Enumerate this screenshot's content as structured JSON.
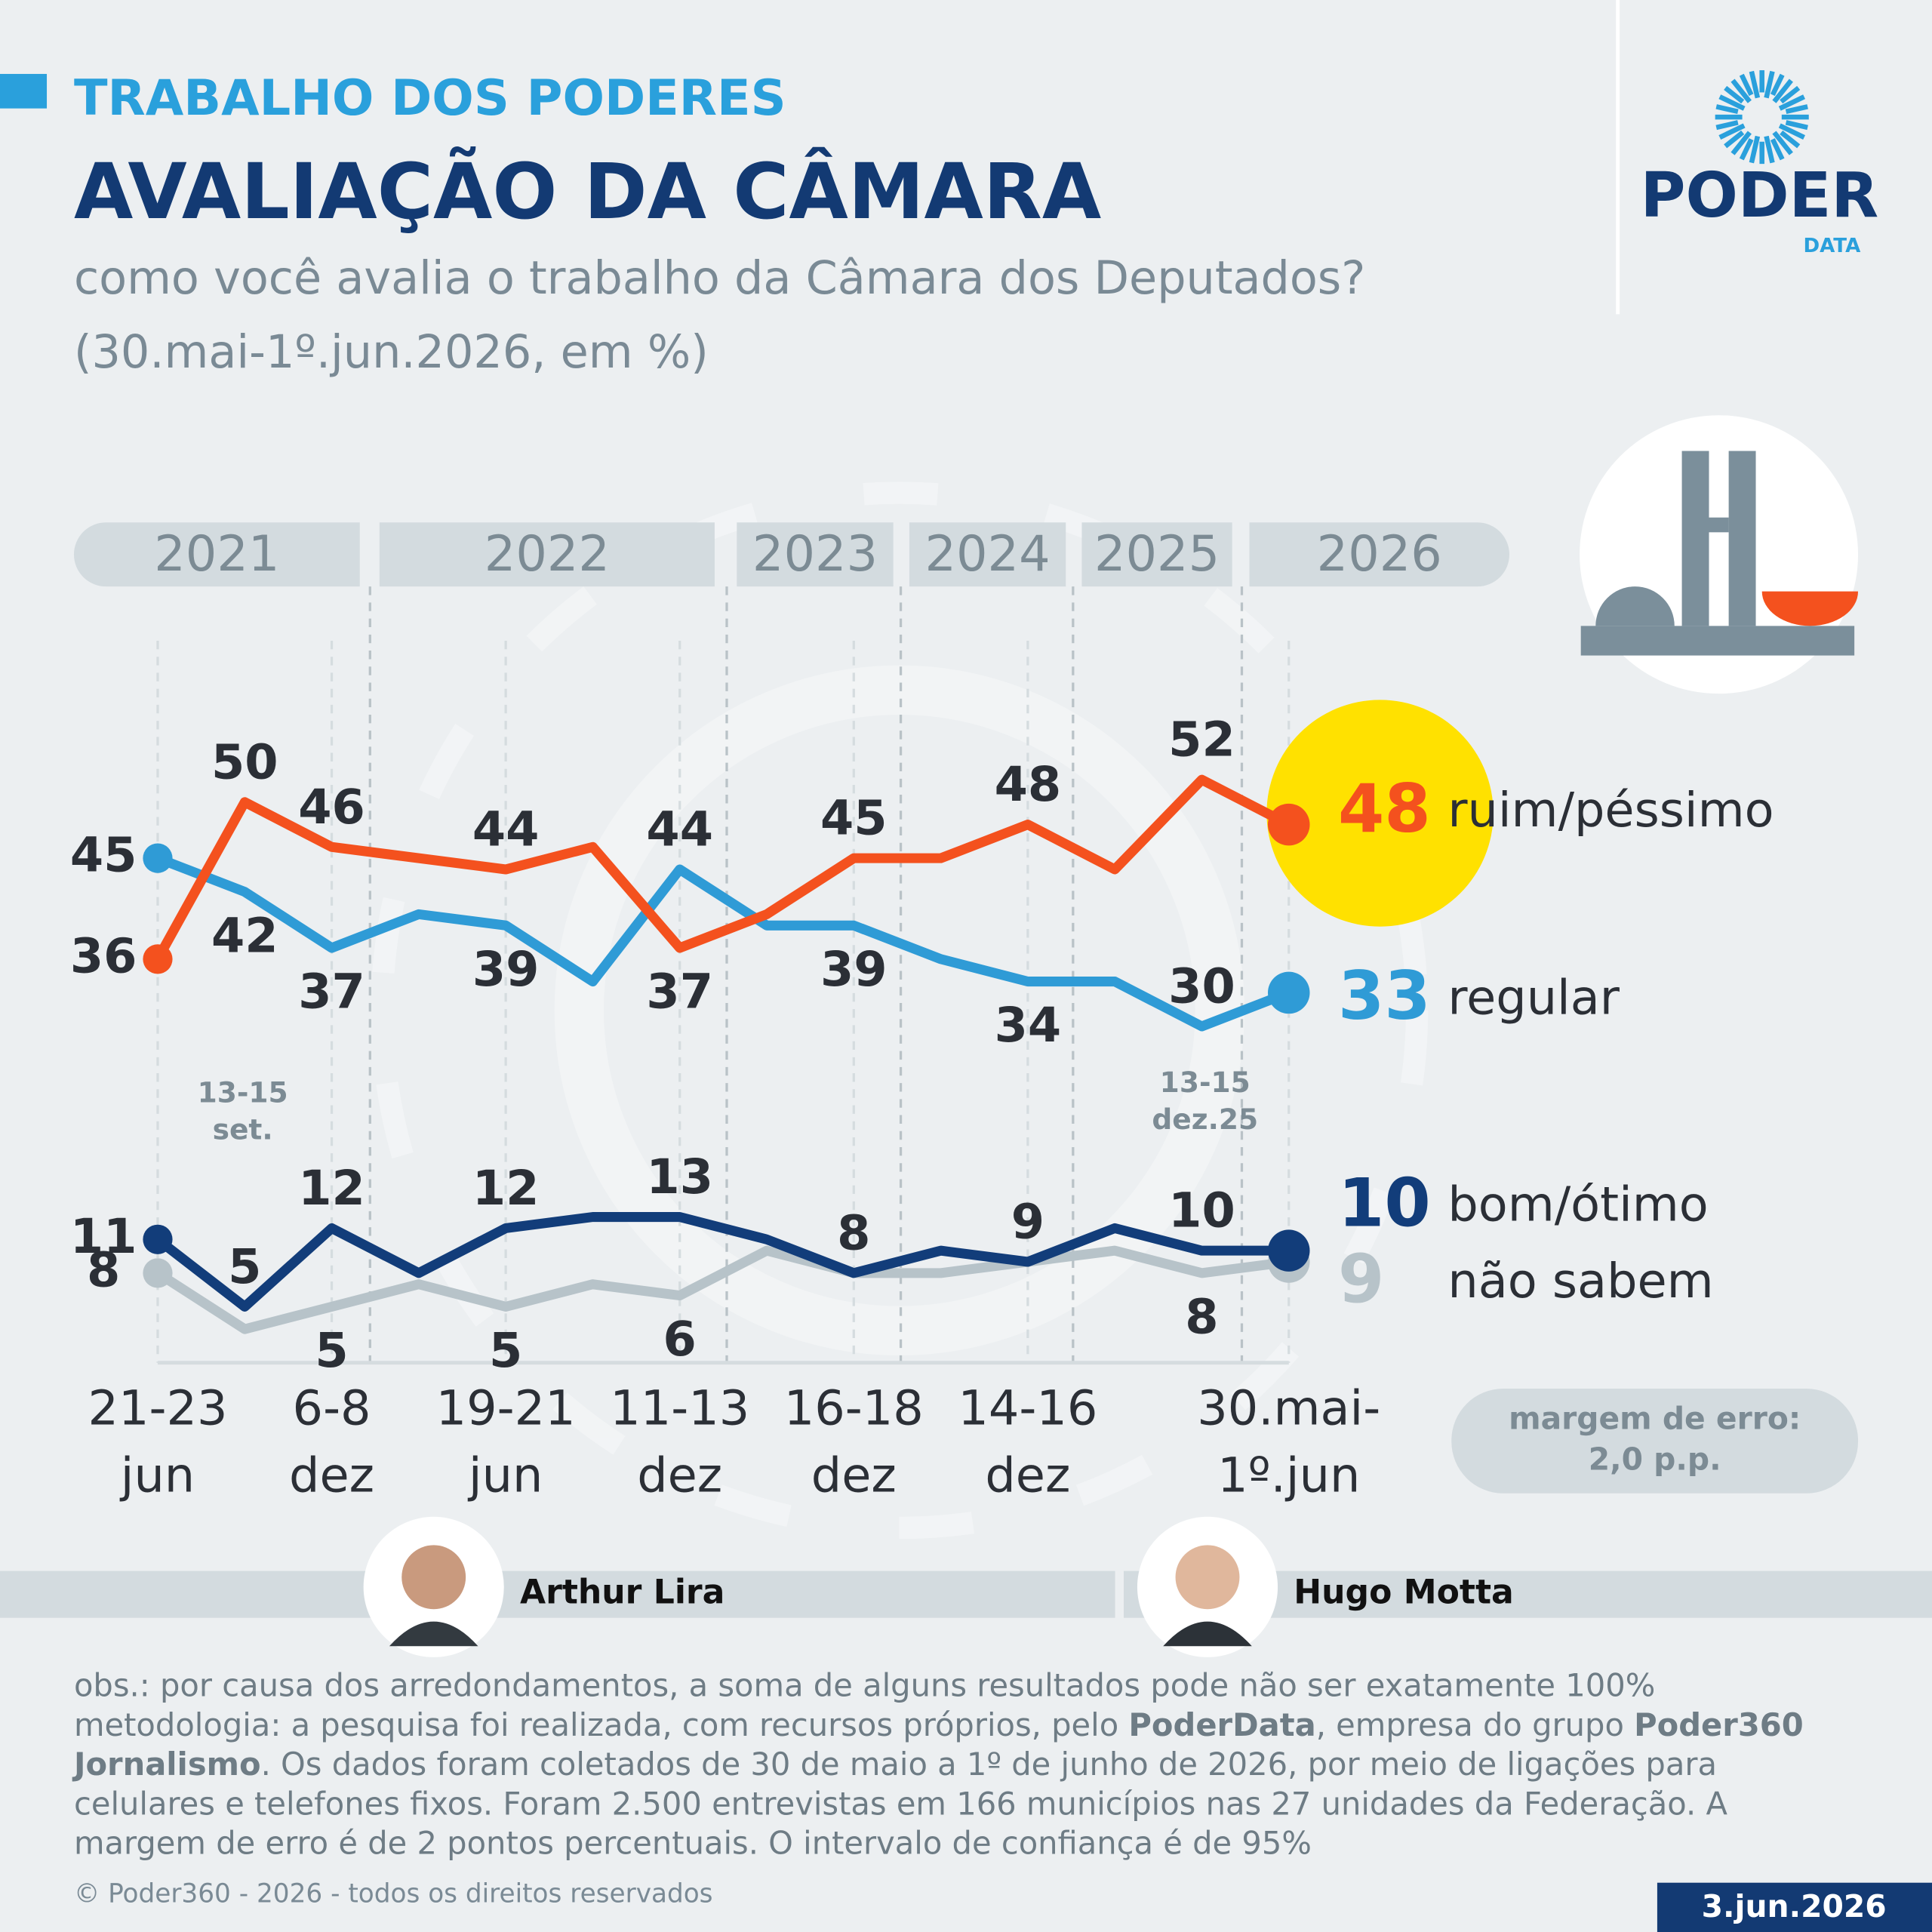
{
  "header": {
    "kicker": "TRABALHO DOS PODERES",
    "title": "AVALIAÇÃO DA CÂMARA",
    "subtitle": [
      "como você avalia o trabalho da Câmara dos Deputados?",
      "(30.mai-1º.jun.2026, em %)"
    ]
  },
  "logo": {
    "name": "PODER",
    "sub": "DATA"
  },
  "chart_data": {
    "type": "line",
    "years": [
      "2021",
      "2022",
      "2023",
      "2024",
      "2025",
      "2026"
    ],
    "categories": [
      "21-23\njun",
      null,
      "6-8\ndez",
      null,
      "19-21\njun",
      null,
      "11-13\ndez",
      null,
      "16-18\ndez",
      null,
      "14-16\ndez",
      null,
      null,
      "30.mai-\n1º.jun"
    ],
    "ylim": [
      0,
      60
    ],
    "series": [
      {
        "name": "ruim/péssimo",
        "color": "#f4511e",
        "values": [
          36,
          50,
          46,
          45,
          44,
          46,
          37,
          40,
          45,
          45,
          48,
          44,
          52,
          48
        ],
        "value_labels": [
          "36",
          "50",
          "46",
          null,
          "44",
          null,
          "37",
          null,
          "45",
          null,
          "48",
          null,
          "52",
          null
        ]
      },
      {
        "name": "regular",
        "color": "#2f9bd6",
        "values": [
          45,
          42,
          37,
          40,
          39,
          34,
          44,
          39,
          39,
          36,
          34,
          34,
          30,
          33
        ],
        "value_labels": [
          "45",
          "42",
          "37",
          null,
          "39",
          null,
          "44",
          null,
          "39",
          null,
          "34",
          null,
          "30",
          null
        ]
      },
      {
        "name": "bom/ótimo",
        "color": "#123d7a",
        "values": [
          11,
          5,
          12,
          8,
          12,
          13,
          13,
          11,
          8,
          10,
          9,
          12,
          10,
          10
        ],
        "value_labels": [
          "11",
          "5",
          "12",
          null,
          "12",
          null,
          "13",
          null,
          "8",
          null,
          "9",
          null,
          "10",
          null
        ]
      },
      {
        "name": "não sabem",
        "color": "#b7c3c9",
        "values": [
          8,
          3,
          5,
          7,
          5,
          7,
          6,
          10,
          8,
          8,
          9,
          10,
          8,
          9
        ],
        "value_labels": [
          "8",
          null,
          "5",
          null,
          "5",
          null,
          "6",
          null,
          null,
          null,
          null,
          null,
          "8",
          null
        ]
      }
    ],
    "annotations": [
      [
        "13-15",
        "set."
      ],
      [
        "13-15",
        "dez.25"
      ]
    ],
    "margin_note": [
      "margem de erro:",
      "2,0 p.p."
    ]
  },
  "people": [
    "Arthur Lira",
    "Hugo Motta"
  ],
  "footnote": [
    [
      "obs.: por causa dos arredondamentos, a soma de alguns resultados pode não ser exatamente 100%"
    ],
    [
      "metodologia: a pesquisa foi realizada, com recursos próprios, pelo ",
      {
        "text": "PoderData",
        "bold": true
      },
      ", empresa do grupo ",
      {
        "text": "Poder360",
        "bold": true
      }
    ],
    [
      {
        "text": "Jornalismo",
        "bold": true
      },
      ". Os dados foram coletados de 30 de maio a 1º de junho de 2026, por meio de ligações para"
    ],
    [
      "celulares e telefones fixos. Foram 2.500 entrevistas em 166 municípios nas 27 unidades da Federação. A"
    ],
    [
      "margem de erro é de 2 pontos percentuais. O intervalo de confiança é de 95%"
    ]
  ],
  "copyright": "© Poder360 - 2026 - todos os direitos reservados",
  "date": "3.jun.2026"
}
